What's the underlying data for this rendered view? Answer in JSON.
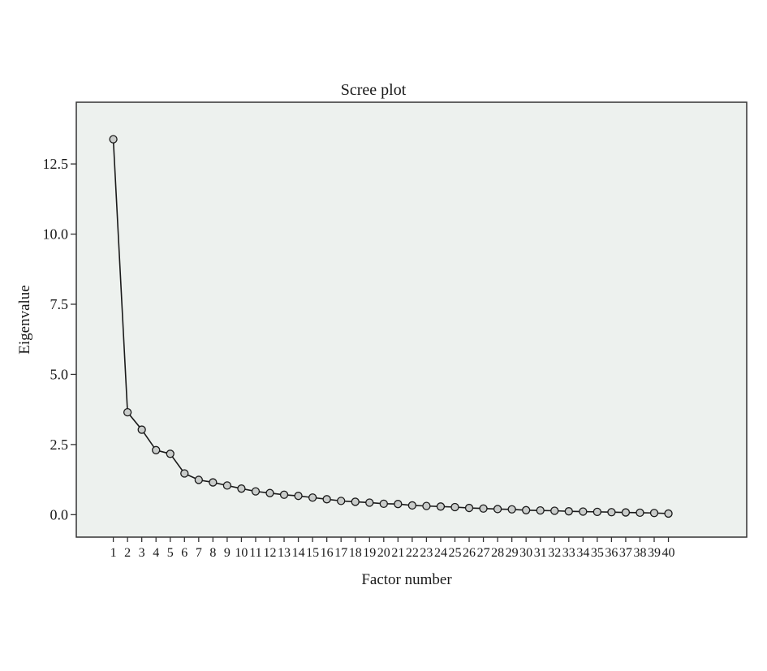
{
  "chart_data": {
    "type": "line",
    "title": "Scree plot",
    "xlabel": "Factor number",
    "ylabel": "Eigenvalue",
    "x": [
      1,
      2,
      3,
      4,
      5,
      6,
      7,
      8,
      9,
      10,
      11,
      12,
      13,
      14,
      15,
      16,
      17,
      18,
      19,
      20,
      21,
      22,
      23,
      24,
      25,
      26,
      27,
      28,
      29,
      30,
      31,
      32,
      33,
      34,
      35,
      36,
      37,
      38,
      39,
      40
    ],
    "series": [
      {
        "values": [
          13.38,
          3.65,
          3.03,
          2.3,
          2.17,
          1.47,
          1.24,
          1.15,
          1.04,
          0.93,
          0.83,
          0.77,
          0.71,
          0.67,
          0.61,
          0.55,
          0.49,
          0.46,
          0.43,
          0.39,
          0.38,
          0.33,
          0.31,
          0.29,
          0.27,
          0.24,
          0.22,
          0.2,
          0.19,
          0.16,
          0.15,
          0.14,
          0.12,
          0.11,
          0.1,
          0.09,
          0.08,
          0.07,
          0.06,
          0.04
        ]
      }
    ],
    "yticks": [
      "0.0",
      "2.5",
      "5.0",
      "7.5",
      "10.0",
      "12.5"
    ],
    "ytick_values": [
      0,
      2.5,
      5,
      7.5,
      10,
      12.5
    ],
    "xticks": [
      "1",
      "2",
      "3",
      "4",
      "5",
      "6",
      "7",
      "8",
      "9",
      "10",
      "11",
      "12",
      "13",
      "14",
      "15",
      "16",
      "17",
      "18",
      "19",
      "20",
      "21",
      "22",
      "23",
      "24",
      "25",
      "26",
      "27",
      "28",
      "29",
      "30",
      "31",
      "32",
      "33",
      "34",
      "35",
      "36",
      "37",
      "38",
      "39",
      "40"
    ],
    "ylim": [
      -0.8,
      14.7
    ],
    "xlim": [
      -1.6,
      45.5
    ],
    "grid": false,
    "legend": "none",
    "colors": {
      "plot_background": "#edf1ee",
      "line": "#1a1a1a",
      "marker_fill": "#c9ccca",
      "frame": "#333333"
    }
  }
}
